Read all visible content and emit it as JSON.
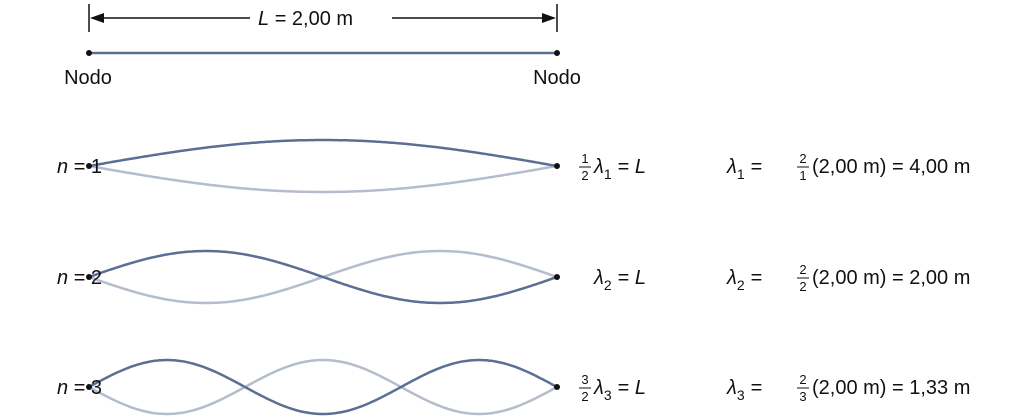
{
  "colors": {
    "dark_wave": "#5a6f93",
    "light_wave": "#b4bdcc",
    "ink": "#111111"
  },
  "dimension": {
    "symbol": "L",
    "value": "= 2,00 m"
  },
  "nodes": {
    "left": "Nodo",
    "right": "Nodo"
  },
  "rows": [
    {
      "n": 1,
      "n_sym": "n",
      "n_eq": "= 1",
      "eq1": {
        "num": "1",
        "den": "2",
        "lam": "λ",
        "sub": "1",
        "rhs_eq": "=",
        "rhs": "L"
      },
      "eq2": {
        "lam": "λ",
        "sub": "1",
        "eq": "=",
        "num": "2",
        "den": "1",
        "tail": "(2,00 m) = 4,00 m"
      }
    },
    {
      "n": 2,
      "n_sym": "n",
      "n_eq": "= 2",
      "eq1": {
        "num": "",
        "den": "",
        "lam": "λ",
        "sub": "2",
        "rhs_eq": "=",
        "rhs": "L"
      },
      "eq2": {
        "lam": "λ",
        "sub": "2",
        "eq": "=",
        "num": "2",
        "den": "2",
        "tail": "(2,00 m) = 2,00 m"
      }
    },
    {
      "n": 3,
      "n_sym": "n",
      "n_eq": "= 3",
      "eq1": {
        "num": "3",
        "den": "2",
        "lam": "λ",
        "sub": "3",
        "rhs_eq": "=",
        "rhs": "L"
      },
      "eq2": {
        "lam": "λ",
        "sub": "3",
        "eq": "=",
        "num": "2",
        "den": "3",
        "tail": "(2,00 m) = 1,33 m"
      }
    }
  ]
}
